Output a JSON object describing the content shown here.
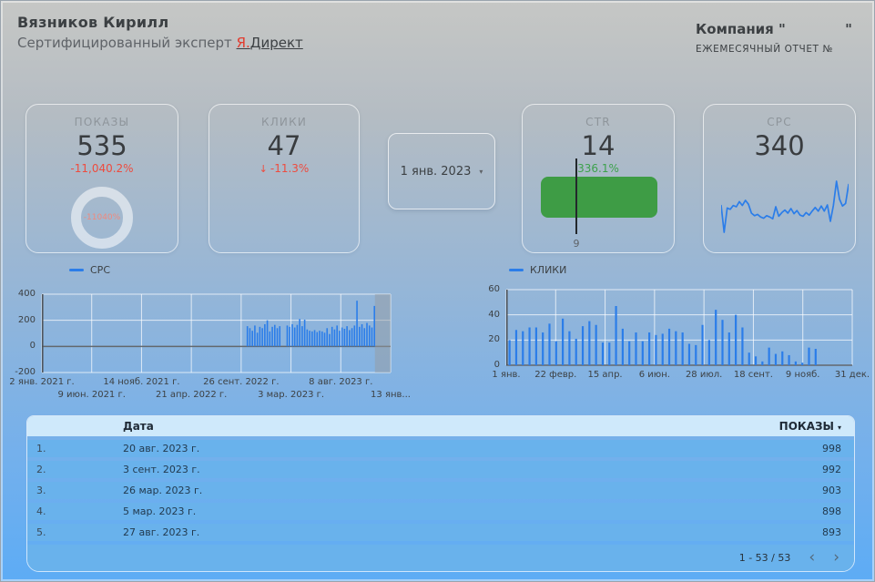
{
  "header": {
    "name": "Вязников Кирилл",
    "subtitle_prefix": "Сертифицированный эксперт ",
    "link_red": "Я.",
    "link_rest": "Директ",
    "company_label": "Компания \"",
    "company_close_quote": "\"",
    "report_label": "ЕЖЕМЕСЯЧНЫЙ ОТЧЕТ №"
  },
  "kpi": {
    "impressions": {
      "label": "ПОКАЗЫ",
      "value": "535",
      "delta": "-11,040.2%",
      "donut_label": "-11040%"
    },
    "clicks": {
      "label": "КЛИКИ",
      "value": "47",
      "arrow": "↓",
      "delta": "-11.3%"
    },
    "date_filter": {
      "value": "1 янв. 2023",
      "caret": "▾"
    },
    "ctr": {
      "label": "CTR",
      "value": "14",
      "delta": "336.1%",
      "marker_label": "9"
    },
    "cpc": {
      "label": "СРС",
      "value": "340"
    }
  },
  "chart_data": [
    {
      "id": "cpc_history",
      "type": "bar",
      "legend": [
        "СРС"
      ],
      "ylim": [
        -200,
        400
      ],
      "yticks": [
        400,
        200,
        0,
        -200
      ],
      "xticks": [
        "2 янв. 2021 г.",
        "9 июн. 2021 г.",
        "14 нояб. 2021 г.",
        "21 апр. 2022 г.",
        "26 сент. 2022 г.",
        "3 мар. 2023 г.",
        "8 авг. 2023 г.",
        "13 янв..."
      ],
      "total_slots": 140,
      "start_index": 82,
      "values": [
        155,
        140,
        120,
        160,
        105,
        150,
        140,
        170,
        200,
        115,
        150,
        165,
        140,
        155,
        null,
        null,
        160,
        150,
        170,
        145,
        165,
        210,
        155,
        205,
        130,
        120,
        115,
        125,
        110,
        120,
        115,
        105,
        140,
        95,
        150,
        130,
        160,
        120,
        145,
        135,
        155,
        125,
        140,
        160,
        350,
        150,
        170,
        140,
        180,
        160,
        145,
        310
      ],
      "highlight_band": {
        "start_frac": 0.955,
        "end_frac": 1.0
      }
    },
    {
      "id": "clicks_daily",
      "type": "bar",
      "legend": [
        "КЛИКИ"
      ],
      "ylim": [
        0,
        60
      ],
      "yticks": [
        60,
        40,
        20,
        0
      ],
      "xticks": [
        "1 янв.",
        "22 февр.",
        "15 апр.",
        "6 июн.",
        "28 июл.",
        "18 сент.",
        "9 нояб.",
        "31 дек."
      ],
      "total_slots": 52,
      "start_index": 0,
      "values": [
        20,
        28,
        27,
        30,
        30,
        26,
        33,
        19,
        37,
        27,
        21,
        31,
        35,
        32,
        18,
        18,
        47,
        29,
        19,
        26,
        19,
        26,
        24,
        25,
        29,
        27,
        26,
        17,
        16,
        32,
        20,
        44,
        36,
        26,
        40,
        30,
        10,
        7,
        3,
        14,
        9,
        11,
        8,
        3,
        2,
        14,
        13,
        0,
        0,
        0,
        0,
        0
      ]
    },
    {
      "id": "cpc_sparkline",
      "type": "line",
      "values": [
        150,
        45,
        140,
        135,
        150,
        145,
        165,
        150,
        170,
        155,
        120,
        110,
        115,
        105,
        100,
        110,
        105,
        98,
        145,
        108,
        122,
        132,
        120,
        138,
        118,
        130,
        112,
        108,
        122,
        112,
        128,
        142,
        128,
        148,
        128,
        152,
        88,
        150,
        245,
        175,
        148,
        158,
        232
      ]
    }
  ],
  "table": {
    "date_header": "Дата",
    "metric_header": "ПОКАЗЫ",
    "sort_icon": "▾",
    "rows": [
      {
        "n": "1.",
        "date": "20 авг. 2023 г.",
        "value": "998"
      },
      {
        "n": "2.",
        "date": "3 сент. 2023 г.",
        "value": "992"
      },
      {
        "n": "3.",
        "date": "26 мар. 2023 г.",
        "value": "903"
      },
      {
        "n": "4.",
        "date": "5 мар. 2023 г.",
        "value": "898"
      },
      {
        "n": "5.",
        "date": "27 авг. 2023 г.",
        "value": "893"
      }
    ],
    "pagination": "1 - 53 / 53",
    "prev_icon": "‹",
    "next_icon": "›"
  },
  "colors": {
    "accent_blue": "#2b7de9",
    "negative_red": "#ee4b3e",
    "positive_green": "#3da14c",
    "gauge_green": "#3e9c45",
    "grid_white": "rgba(255,255,255,0.72)",
    "zero_line": "#63686d",
    "axis_line": "#4a4f54",
    "band_gray": "rgba(150,156,162,0.5)",
    "table_header_bg": "#cfe9fb",
    "table_row_bg": "#69b2ec"
  }
}
